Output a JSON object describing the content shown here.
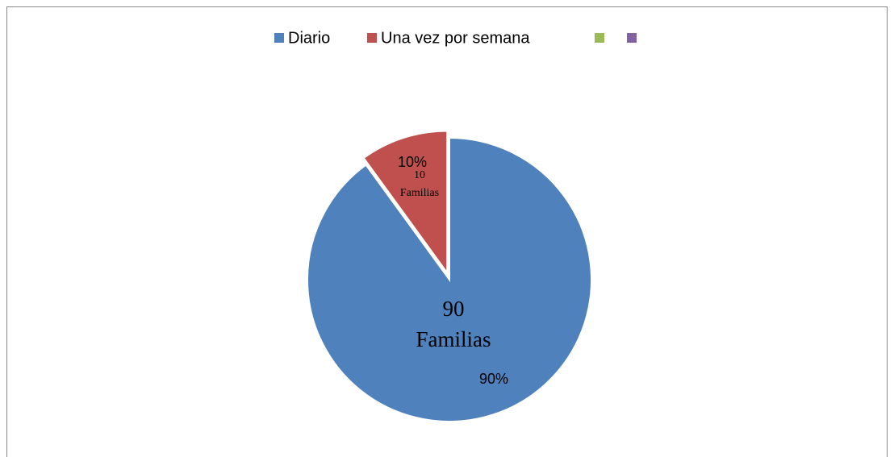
{
  "chart_data": {
    "type": "pie",
    "categories": [
      "Diario",
      "Una vez por semana",
      null,
      null
    ],
    "values": [
      90,
      10,
      0,
      0
    ],
    "value_labels": [
      "90%",
      "10%",
      null,
      null
    ],
    "colors": [
      "#4f81bd",
      "#c0504d",
      "#9bbb59",
      "#8064a2"
    ],
    "legend": "top",
    "annotations": [
      {
        "lines": [
          "90",
          "Familias"
        ]
      },
      {
        "lines": [
          "10",
          "Familias"
        ]
      }
    ]
  }
}
